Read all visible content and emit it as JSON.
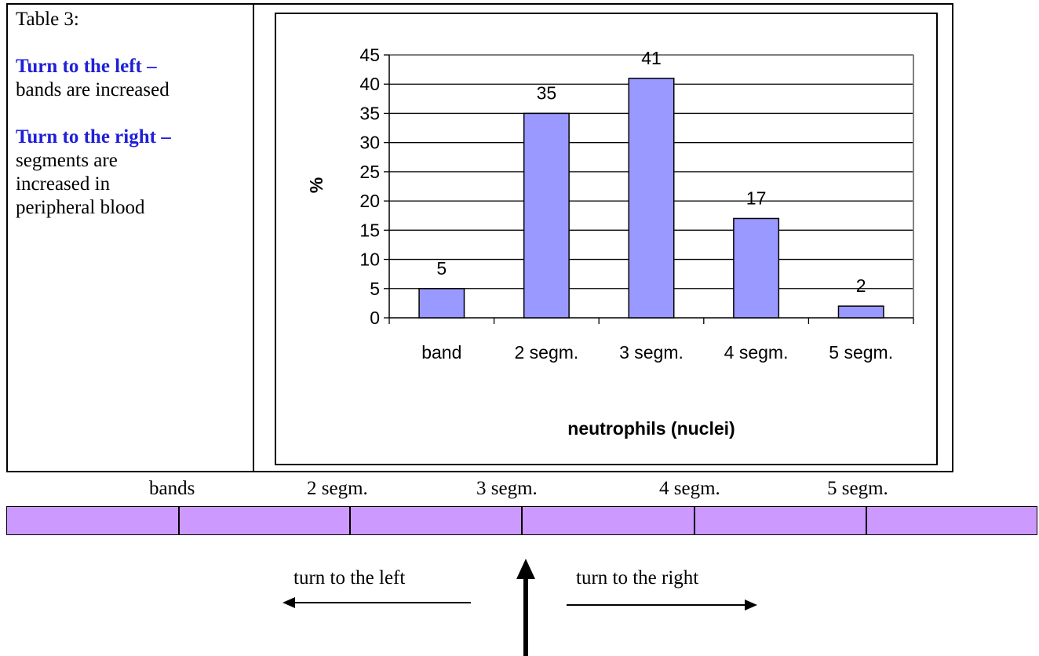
{
  "left_cell": {
    "caption": "Table 3:",
    "left_heading": "Turn to the left –",
    "left_text": "bands are increased",
    "right_heading": "Turn to the right –",
    "right_text_lines": [
      "segments are",
      "increased in",
      "peripheral blood"
    ]
  },
  "chart_data": {
    "type": "bar",
    "categories": [
      "band",
      "2 segm.",
      "3 segm.",
      "4 segm.",
      "5 segm."
    ],
    "values": [
      5,
      35,
      41,
      17,
      2
    ],
    "xlabel": "neutrophils (nuclei)",
    "ylabel": "%",
    "ylim": [
      0,
      45
    ],
    "yticks": [
      0,
      5,
      10,
      15,
      20,
      25,
      30,
      35,
      40,
      45
    ],
    "grid": true,
    "bar_color": "#9999ff"
  },
  "strip": {
    "labels": [
      "bands",
      "2 segm.",
      "3 segm.",
      "4 segm.",
      "5 segm."
    ],
    "color": "#cc99ff"
  },
  "arrows": {
    "left_label": "turn to the left",
    "right_label": "turn to the right"
  }
}
